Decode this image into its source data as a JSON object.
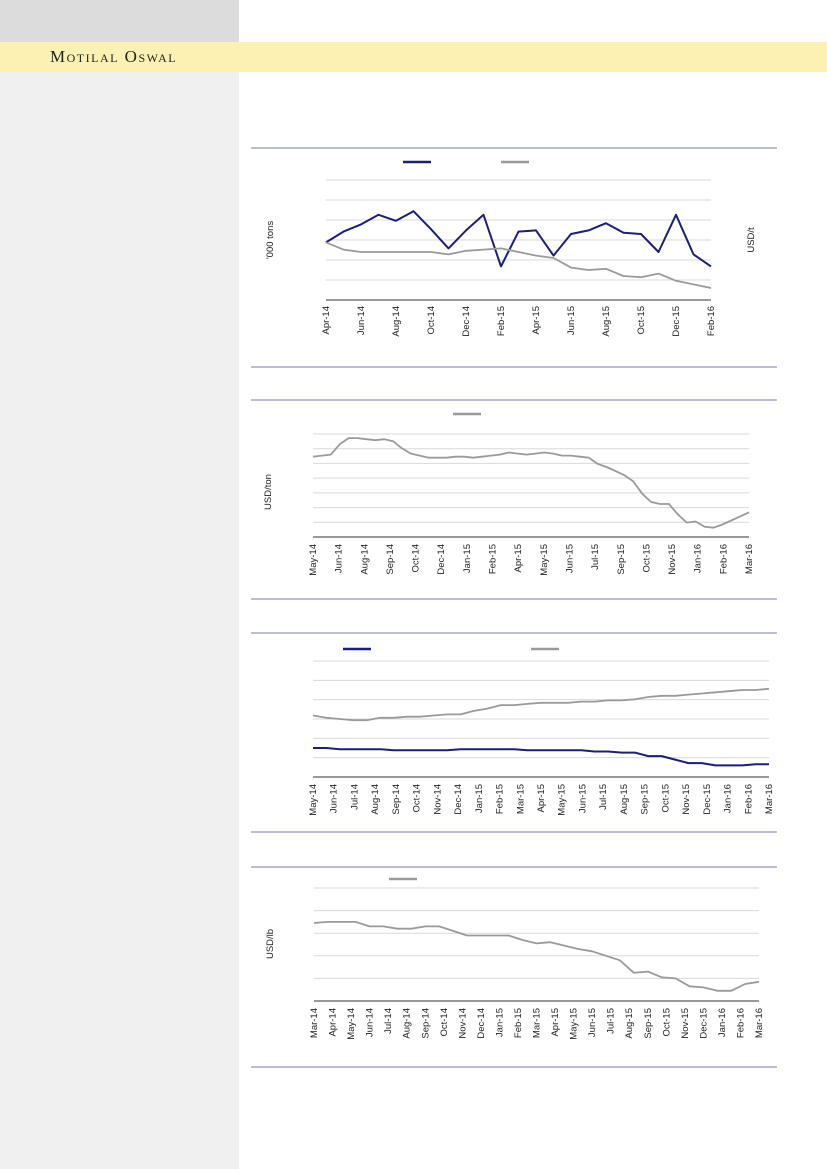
{
  "header": {
    "brand": "Motilal Oswal"
  },
  "colors": {
    "navy": "#1c1f77",
    "grey": "#9a9a9a",
    "brand_bar": "#fbf1b3",
    "sidebar": "#f0f0f0"
  },
  "chart_data": [
    {
      "type": "line",
      "ylabel_left": "'000 tons",
      "ylabel_right": "USD/t",
      "ylim": [
        0,
        100
      ],
      "legend": "top-center",
      "x_ticks": [
        "Apr-14",
        "Jun-14",
        "Aug-14",
        "Oct-14",
        "Dec-14",
        "Feb-15",
        "Apr-15",
        "Jun-15",
        "Aug-15",
        "Oct-15",
        "Dec-15",
        "Feb-16"
      ],
      "x": [
        "Apr-14",
        "May-14",
        "Jun-14",
        "Jul-14",
        "Aug-14",
        "Sep-14",
        "Oct-14",
        "Nov-14",
        "Dec-14",
        "Jan-15",
        "Feb-15",
        "Mar-15",
        "Apr-15",
        "May-15",
        "Jun-15",
        "Jul-15",
        "Aug-15",
        "Sep-15",
        "Oct-15",
        "Nov-15",
        "Dec-15",
        "Jan-16",
        "Feb-16"
      ],
      "series": [
        {
          "color": "navy",
          "values": [
            48,
            57,
            63,
            71,
            66,
            74,
            59,
            43,
            58,
            71,
            28,
            57,
            58,
            37,
            55,
            58,
            64,
            56,
            55,
            40,
            71,
            38,
            28
          ]
        },
        {
          "color": "grey",
          "values": [
            48,
            42,
            40,
            40,
            40,
            40,
            40,
            38,
            41,
            42,
            43,
            40,
            37,
            35,
            27,
            25,
            26,
            20,
            19,
            22,
            16,
            13,
            10
          ]
        }
      ]
    },
    {
      "type": "line",
      "ylabel": "USD/ton",
      "ylim": [
        0,
        100
      ],
      "legend": "top-center",
      "x_ticks": [
        "May-14",
        "Jun-14",
        "Aug-14",
        "Sep-14",
        "Oct-14",
        "Dec-14",
        "Jan-15",
        "Feb-15",
        "Apr-15",
        "May-15",
        "Jun-15",
        "Jul-15",
        "Sep-15",
        "Oct-15",
        "Nov-15",
        "Jan-16",
        "Feb-16",
        "Mar-16"
      ],
      "series": [
        {
          "color": "grey",
          "values": [
            78,
            79,
            80,
            90,
            96,
            96,
            95,
            94,
            95,
            93,
            86,
            81,
            79,
            77,
            77,
            77,
            78,
            78,
            77,
            78,
            79,
            80,
            82,
            81,
            80,
            81,
            82,
            81,
            79,
            79,
            78,
            77,
            71,
            68,
            64,
            60,
            54,
            42,
            34,
            32,
            32,
            22,
            14,
            15,
            10,
            9,
            12,
            16,
            20,
            24
          ]
        }
      ]
    },
    {
      "type": "line",
      "ylim": [
        0,
        100
      ],
      "legend": "top",
      "x_ticks": [
        "May-14",
        "Jun-14",
        "Jul-14",
        "Aug-14",
        "Sep-14",
        "Oct-14",
        "Nov-14",
        "Dec-14",
        "Jan-15",
        "Feb-15",
        "Mar-15",
        "Apr-15",
        "May-15",
        "Jun-15",
        "Jul-15",
        "Aug-15",
        "Sep-15",
        "Oct-15",
        "Nov-15",
        "Dec-15",
        "Jan-16",
        "Feb-16",
        "Mar-16"
      ],
      "series": [
        {
          "color": "navy",
          "values": [
            25,
            25,
            24,
            24,
            24,
            24,
            23,
            23,
            23,
            23,
            23,
            24,
            24,
            24,
            24,
            24,
            23,
            23,
            23,
            23,
            23,
            22,
            22,
            21,
            21,
            18,
            18,
            15,
            12,
            12,
            10,
            10,
            10,
            11,
            11
          ]
        },
        {
          "color": "grey",
          "values": [
            53,
            51,
            50,
            49,
            49,
            51,
            51,
            52,
            52,
            53,
            54,
            54,
            57,
            59,
            62,
            62,
            63,
            64,
            64,
            64,
            65,
            65,
            66,
            66,
            67,
            69,
            70,
            70,
            71,
            72,
            73,
            74,
            75,
            75,
            76
          ]
        }
      ]
    },
    {
      "type": "line",
      "ylabel": "USD/lb",
      "ylim": [
        0,
        100
      ],
      "legend": "top-left",
      "x_ticks": [
        "Mar-14",
        "Apr-14",
        "May-14",
        "Jun-14",
        "Jul-14",
        "Aug-14",
        "Sep-14",
        "Oct-14",
        "Nov-14",
        "Dec-14",
        "Jan-15",
        "Feb-15",
        "Mar-15",
        "Apr-15",
        "May-15",
        "Jun-15",
        "Jul-15",
        "Aug-15",
        "Sep-15",
        "Oct-15",
        "Nov-15",
        "Dec-15",
        "Jan-16",
        "Feb-16",
        "Mar-16"
      ],
      "series": [
        {
          "color": "grey",
          "values": [
            69,
            70,
            70,
            70,
            66,
            66,
            64,
            64,
            66,
            66,
            62,
            58,
            58,
            58,
            58,
            54,
            51,
            52,
            49,
            46,
            44,
            40,
            36,
            25,
            26,
            21,
            20,
            13,
            12,
            9,
            9,
            15,
            17
          ]
        }
      ]
    }
  ]
}
